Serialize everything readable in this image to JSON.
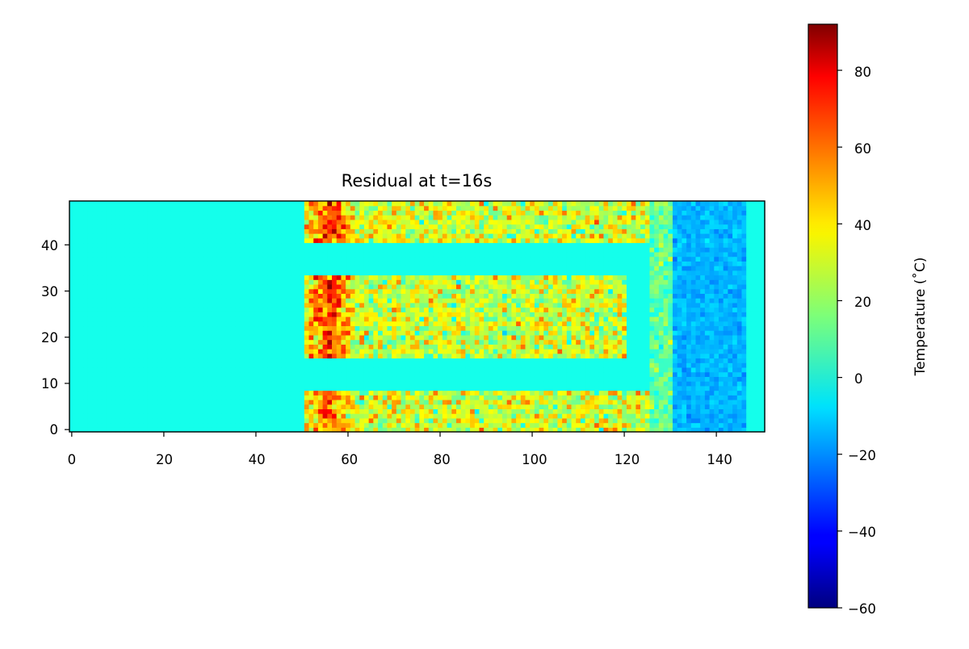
{
  "chart_data": {
    "type": "heatmap",
    "title": "Residual at t=16s",
    "xlabel": "",
    "ylabel": "",
    "x_range": [
      0,
      150
    ],
    "y_range": [
      0,
      49
    ],
    "x_ticks": [
      "0",
      "20",
      "40",
      "60",
      "80",
      "100",
      "120",
      "140"
    ],
    "y_ticks": [
      "0",
      "10",
      "20",
      "30",
      "40"
    ],
    "colormap": "jet",
    "colorbar": {
      "label": "Temperature (˚C)",
      "range": [
        -60,
        92
      ],
      "ticks": [
        "−60",
        "−40",
        "−20",
        "0",
        "20",
        "40",
        "60",
        "80"
      ]
    },
    "regions": [
      {
        "region": "background",
        "x": [
          0,
          150
        ],
        "y": [
          0,
          49
        ],
        "value": 0
      },
      {
        "region": "hot_band_lower",
        "x": [
          51,
          126
        ],
        "y": [
          0,
          8
        ],
        "mean": 28,
        "spread": 18,
        "peak_x": 56,
        "peak": 70
      },
      {
        "region": "hot_band_middle",
        "x": [
          51,
          120
        ],
        "y": [
          16,
          33
        ],
        "mean": 28,
        "spread": 18,
        "peak_x": 56,
        "peak": 78
      },
      {
        "region": "hot_band_upper",
        "x": [
          51,
          125
        ],
        "y": [
          41,
          49
        ],
        "mean": 30,
        "spread": 18,
        "peak_x": 56,
        "peak": 78
      },
      {
        "region": "connector",
        "x": [
          126,
          131
        ],
        "y": [
          0,
          49
        ],
        "mean": 12,
        "spread": 10
      },
      {
        "region": "cool_edge",
        "x": [
          131,
          146
        ],
        "y": [
          0,
          49
        ],
        "mean": -14,
        "spread": 5
      }
    ]
  }
}
